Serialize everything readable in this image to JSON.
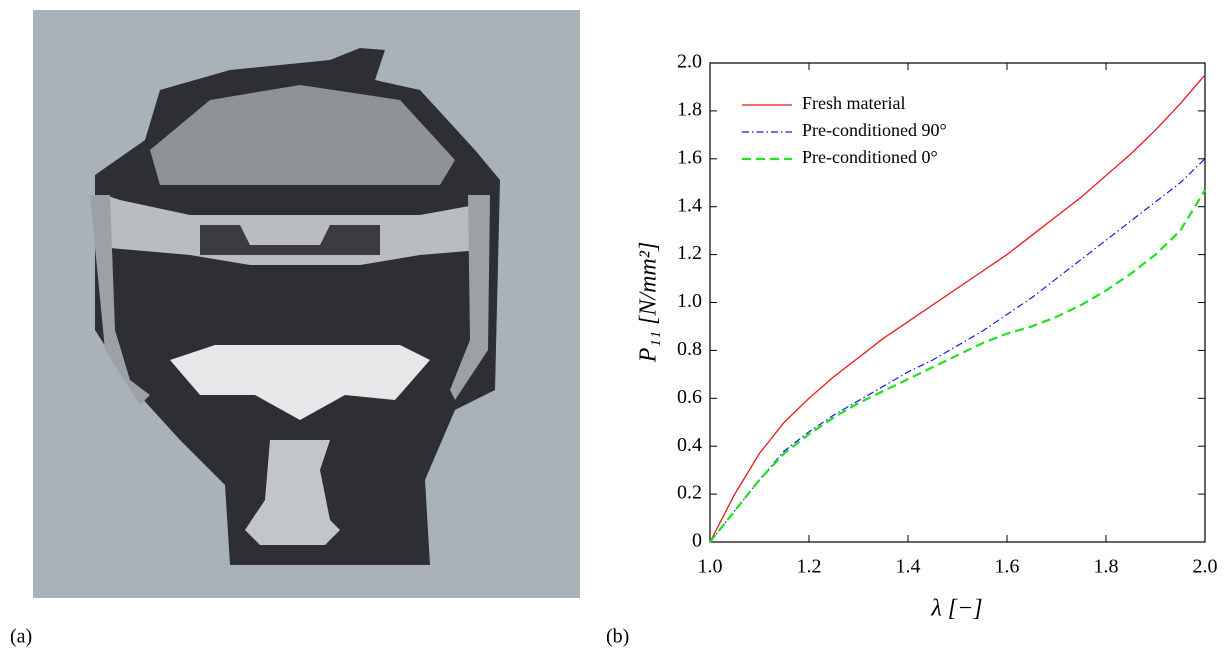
{
  "figure_labels": [
    "(a)",
    "(b)"
  ],
  "chart_data": {
    "type": "line",
    "xlabel": "λ [−]",
    "ylabel": "P₁₁ [N/mm²]",
    "x": [
      1.0,
      1.05,
      1.1,
      1.15,
      1.2,
      1.25,
      1.3,
      1.35,
      1.4,
      1.45,
      1.5,
      1.55,
      1.6,
      1.65,
      1.7,
      1.75,
      1.8,
      1.85,
      1.9,
      1.95,
      2.0
    ],
    "series": [
      {
        "name": "Fresh material",
        "color": "#e8191e",
        "line_style": "solid",
        "values": [
          0,
          0.2,
          0.37,
          0.5,
          0.6,
          0.69,
          0.77,
          0.85,
          0.92,
          0.99,
          1.06,
          1.13,
          1.2,
          1.28,
          1.36,
          1.44,
          1.53,
          1.62,
          1.72,
          1.83,
          1.95
        ]
      },
      {
        "name": "Pre-conditioned 90°",
        "color": "#1a1ae0",
        "line_style": "dashdot",
        "values": [
          0,
          0.13,
          0.26,
          0.38,
          0.46,
          0.53,
          0.59,
          0.65,
          0.71,
          0.76,
          0.82,
          0.88,
          0.95,
          1.02,
          1.1,
          1.18,
          1.26,
          1.34,
          1.42,
          1.5,
          1.6
        ]
      },
      {
        "name": "Pre-conditioned 0°",
        "color": "#22e022",
        "line_style": "dashed",
        "values": [
          0,
          0.13,
          0.26,
          0.37,
          0.45,
          0.52,
          0.58,
          0.63,
          0.68,
          0.73,
          0.78,
          0.83,
          0.87,
          0.9,
          0.94,
          0.99,
          1.05,
          1.12,
          1.2,
          1.3,
          1.47
        ]
      }
    ],
    "xlim": [
      1.0,
      2.0
    ],
    "xticks": [
      {
        "value": 1.0,
        "label": "1.0"
      },
      1.2,
      1.4,
      1.6,
      1.8,
      {
        "value": 2.0,
        "label": "2.0"
      }
    ],
    "ylim": [
      0,
      2.0
    ],
    "yticks": [
      0,
      0.2,
      0.4,
      0.6,
      0.8,
      {
        "value": 1.0,
        "label": "1.0"
      },
      1.2,
      1.4,
      1.6,
      1.8,
      {
        "value": 2.0,
        "label": "2.0"
      }
    ],
    "grid": false,
    "legend": "upper left"
  }
}
